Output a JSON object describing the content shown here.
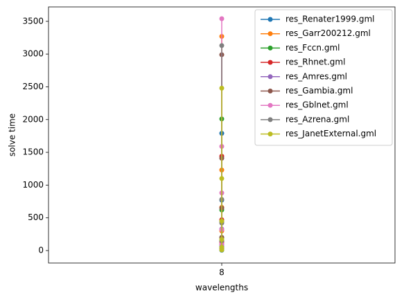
{
  "chart_data": {
    "type": "line",
    "xlabel": "wavelengths",
    "ylabel": "solve time",
    "xlim": [
      7.5,
      8.5
    ],
    "xticks": [
      8
    ],
    "ylim": [
      -190,
      3720
    ],
    "yticks": [
      0,
      500,
      1000,
      1500,
      2000,
      2500,
      3000,
      3500
    ],
    "legend": "upper right",
    "series": [
      {
        "name": "res_Renater1999.gml",
        "color": "#1f77b4",
        "x": [
          8,
          8,
          8,
          8,
          8,
          8,
          8
        ],
        "values": [
          1790,
          770,
          440,
          150,
          60,
          20,
          5
        ]
      },
      {
        "name": "res_Garr200212.gml",
        "color": "#ff7f0e",
        "x": [
          8,
          8,
          8,
          8,
          8,
          8
        ],
        "values": [
          3270,
          1230,
          660,
          300,
          100,
          30
        ]
      },
      {
        "name": "res_Fccn.gml",
        "color": "#2ca02c",
        "x": [
          8,
          8,
          8,
          8,
          8
        ],
        "values": [
          2010,
          620,
          200,
          50,
          10
        ]
      },
      {
        "name": "res_Rhnet.gml",
        "color": "#d62728",
        "x": [
          8,
          8,
          8,
          8
        ],
        "values": [
          1440,
          470,
          130,
          30
        ]
      },
      {
        "name": "res_Amres.gml",
        "color": "#9467bd",
        "x": [
          8,
          8,
          8
        ],
        "values": [
          330,
          90,
          20
        ]
      },
      {
        "name": "res_Gambia.gml",
        "color": "#8c564b",
        "x": [
          8,
          8,
          8,
          8,
          8
        ],
        "values": [
          2990,
          1410,
          650,
          200,
          40
        ]
      },
      {
        "name": "res_Gblnet.gml",
        "color": "#e377c2",
        "x": [
          8,
          8,
          8,
          8,
          8,
          8
        ],
        "values": [
          3540,
          1590,
          880,
          320,
          100,
          20
        ]
      },
      {
        "name": "res_Azrena.gml",
        "color": "#7f7f7f",
        "x": [
          8,
          8,
          8,
          8,
          8
        ],
        "values": [
          3130,
          780,
          420,
          150,
          30
        ]
      },
      {
        "name": "res_JanetExternal.gml",
        "color": "#bcbd22",
        "x": [
          8,
          8,
          8,
          8,
          8,
          8
        ],
        "values": [
          2480,
          1100,
          450,
          170,
          50,
          10
        ]
      }
    ]
  }
}
